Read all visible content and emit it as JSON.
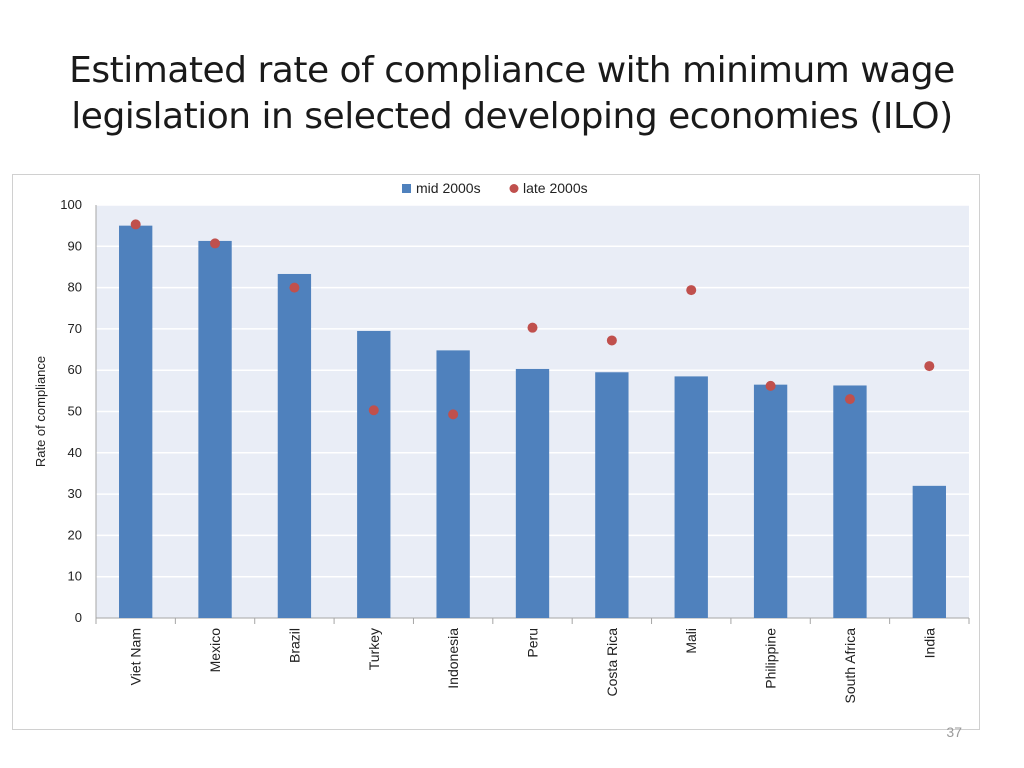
{
  "slide": {
    "title_line1": "Estimated rate of compliance with minimum wage",
    "title_line2": "legislation in selected developing economies (ILO)",
    "page_number": "37"
  },
  "colors": {
    "bar": "#4f81bd",
    "dot": "#c0504d",
    "plot_bg": "#e9edf6",
    "grid": "#ffffff"
  },
  "chart_data": {
    "type": "bar",
    "title": "",
    "xlabel": "",
    "ylabel": "Rate of compliance",
    "ylim": [
      0,
      100
    ],
    "yticks": [
      0,
      10,
      20,
      30,
      40,
      50,
      60,
      70,
      80,
      90,
      100
    ],
    "grid": true,
    "legend_position": "top-center",
    "categories": [
      "Viet Nam",
      "Mexico",
      "Brazil",
      "Turkey",
      "Indonesia",
      "Peru",
      "Costa Rica",
      "Mali",
      "Philippine",
      "South Africa",
      "India"
    ],
    "series": [
      {
        "name": "mid 2000s",
        "kind": "bar",
        "values": [
          95,
          91.3,
          83.3,
          69.5,
          64.8,
          60.3,
          59.5,
          58.5,
          56.5,
          56.3,
          32
        ]
      },
      {
        "name": "late 2000s",
        "kind": "scatter",
        "values": [
          95.3,
          90.7,
          80,
          50.3,
          49.3,
          70.3,
          67.2,
          79.4,
          56.2,
          53,
          61
        ]
      }
    ]
  }
}
